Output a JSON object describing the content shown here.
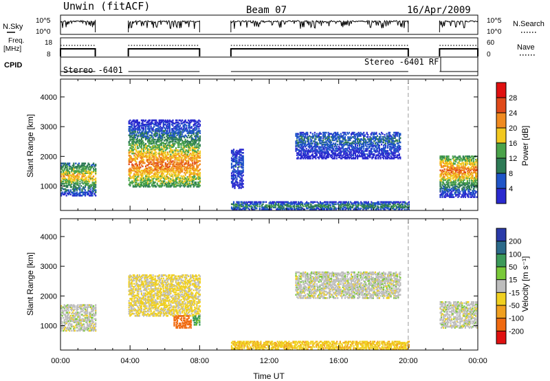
{
  "header": {
    "station": "Unwin (fitACF)",
    "beam": "Beam 07",
    "date": "16/Apr/2009"
  },
  "status_panels": {
    "nsky_label": "N.Sky",
    "nsearch_label": "N.Search",
    "noise_ticks": [
      "10^5",
      "10^0"
    ],
    "freq_label_line1": "Freq.",
    "freq_label_line2": "[MHz]",
    "freq_ticks": [
      "18",
      "8"
    ],
    "nave_label": "Nave",
    "nave_ticks": [
      "60",
      "0"
    ],
    "cpid_label": "CPID",
    "cpid_entries": [
      "Stereo -6401",
      "Stereo -6401 RF"
    ]
  },
  "chart_data": [
    {
      "type": "heatmap",
      "panel": "power",
      "xlabel": "",
      "ylabel": "Slant Range [km]",
      "xlim": [
        0,
        24
      ],
      "ylim": [
        180,
        4600
      ],
      "yticks": [
        1000,
        2000,
        3000,
        4000
      ],
      "colorbar_label": "Power [dB]",
      "colorbar_ticks": [
        4,
        8,
        12,
        16,
        20,
        24,
        28
      ],
      "colorbar_colors": [
        "#2a2acf",
        "#1f55c8",
        "#2d7a55",
        "#4aa34a",
        "#f2c81f",
        "#f08a1f",
        "#e04a1a",
        "#e01010"
      ],
      "data_gaps_hours": [
        [
          2.0,
          3.9
        ],
        [
          8.0,
          9.8
        ],
        [
          20.0,
          21.8
        ]
      ],
      "echo_regions": [
        {
          "t0": 0.0,
          "t1": 2.0,
          "r0": 650,
          "r1": 1750,
          "peak_db": 20,
          "peak_range_km": 1300
        },
        {
          "t0": 3.9,
          "t1": 8.0,
          "r0": 950,
          "r1": 3200,
          "peak_db": 24,
          "peak_range_km": 1700
        },
        {
          "t0": 9.8,
          "t1": 10.5,
          "r0": 900,
          "r1": 2200,
          "peak_db": 6,
          "peak_range_km": 1700
        },
        {
          "t0": 13.5,
          "t1": 19.5,
          "r0": 1900,
          "r1": 2800,
          "peak_db": 8,
          "peak_range_km": 2500
        },
        {
          "t0": 9.8,
          "t1": 20.0,
          "r0": 180,
          "r1": 450,
          "peak_db": 12,
          "peak_range_km": 300
        },
        {
          "t0": 21.8,
          "t1": 24.0,
          "r0": 600,
          "r1": 2000,
          "peak_db": 24,
          "peak_range_km": 1500
        }
      ]
    },
    {
      "type": "heatmap",
      "panel": "velocity",
      "xlabel": "Time UT",
      "ylabel": "Slant Range [km]",
      "xlim": [
        0,
        24
      ],
      "ylim": [
        180,
        4600
      ],
      "yticks": [
        1000,
        2000,
        3000,
        4000
      ],
      "xticks": [
        "00:00",
        "04:00",
        "08:00",
        "12:00",
        "16:00",
        "20:00",
        "00:00"
      ],
      "colorbar_label": "Velocity [m s⁻¹]",
      "colorbar_ticks": [
        200,
        100,
        50,
        15,
        -15,
        -50,
        -100,
        -200
      ],
      "colorbar_colors": [
        "#2a3aa8",
        "#2c6a8a",
        "#3c9a5a",
        "#7ac93a",
        "#bdbdbd",
        "#f0d020",
        "#f0a020",
        "#f06a10",
        "#e01010"
      ],
      "echo_regions": [
        {
          "t0": 0.0,
          "t1": 2.0,
          "r0": 800,
          "r1": 1700,
          "velocity": 0
        },
        {
          "t0": 3.9,
          "t1": 8.0,
          "r0": 1300,
          "r1": 2700,
          "velocity": -20
        },
        {
          "t0": 6.5,
          "t1": 7.5,
          "r0": 900,
          "r1": 1300,
          "velocity": -120
        },
        {
          "t0": 7.6,
          "t1": 8.0,
          "r0": 1000,
          "r1": 1300,
          "velocity": 60
        },
        {
          "t0": 13.5,
          "t1": 19.5,
          "r0": 1900,
          "r1": 2800,
          "velocity": 0
        },
        {
          "t0": 9.8,
          "t1": 20.0,
          "r0": 180,
          "r1": 450,
          "velocity": -40
        },
        {
          "t0": 21.8,
          "t1": 24.0,
          "r0": 900,
          "r1": 1800,
          "velocity": 0
        }
      ]
    }
  ]
}
